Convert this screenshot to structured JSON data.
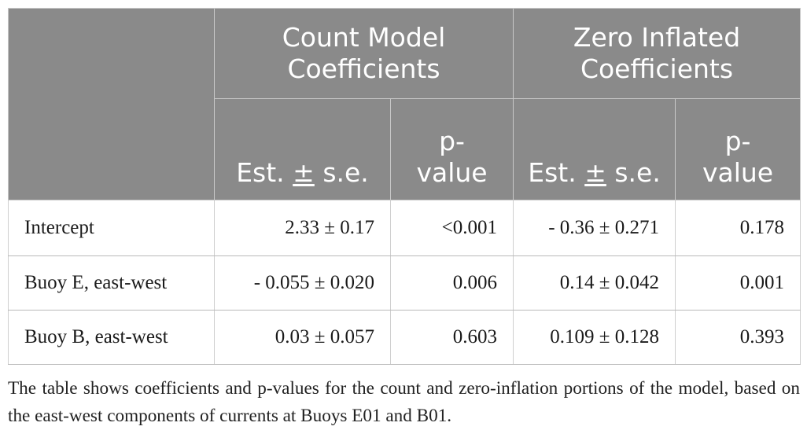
{
  "header": {
    "group1": [
      "Count Model",
      "Coefficients"
    ],
    "group2": [
      "Zero Inflated",
      "Coefficients"
    ],
    "est_prefix": "Est. ",
    "est_pm": "±",
    "est_suffix": " s.e.",
    "pvalue": [
      "p-",
      "value"
    ]
  },
  "rows": [
    {
      "label": "Intercept",
      "count_est": "2.33 ± 0.17",
      "count_p": "<0.001",
      "zero_est": "- 0.36 ± 0.271",
      "zero_p": "0.178"
    },
    {
      "label": "Buoy E, east-west",
      "count_est": "- 0.055 ± 0.020",
      "count_p": "0.006",
      "zero_est": "0.14 ± 0.042",
      "zero_p": "0.001"
    },
    {
      "label": "Buoy B, east-west",
      "count_est": "0.03 ± 0.057",
      "count_p": "0.603",
      "zero_est": "0.109 ± 0.128",
      "zero_p": "0.393"
    }
  ],
  "caption": "The table shows coefficients and p-values for the count and zero-inflation portions of the model, based on the east-west components of currents at Buoys E01 and B01."
}
